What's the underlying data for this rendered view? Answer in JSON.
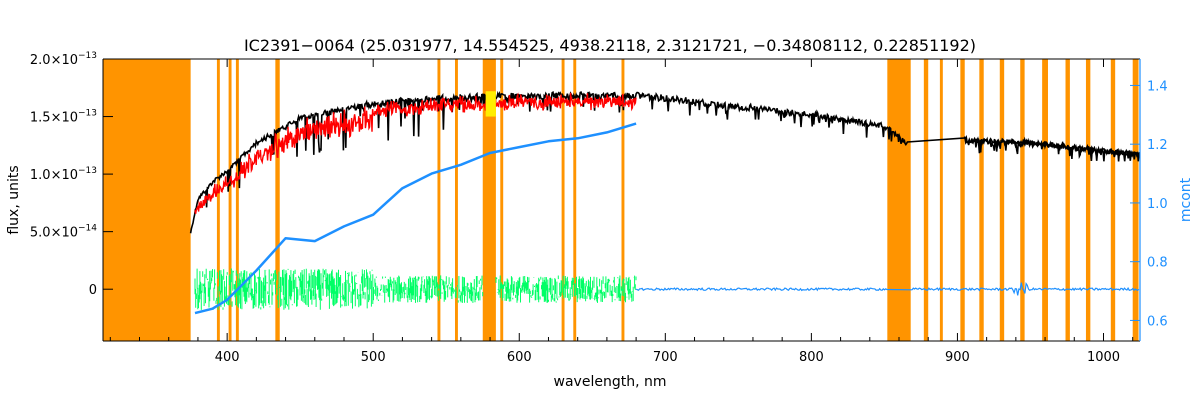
{
  "chart_data": {
    "type": "line",
    "title": "IC2391−0064    (25.031977, 14.554525, 4938.2118, 2.3121721, −0.34808112, 0.22851192)",
    "xlabel": "wavelength, nm",
    "ylabel": "flux, units",
    "ylabel_right": "mcont",
    "xlim": [
      315,
      1025
    ],
    "ylim": [
      -4.5e-14,
      2e-13
    ],
    "ylim_right": [
      0.53,
      1.49
    ],
    "x_ticks": [
      400,
      500,
      600,
      700,
      800,
      900,
      1000
    ],
    "x_tick_labels": [
      "400",
      "500",
      "600",
      "700",
      "800",
      "900",
      "1000"
    ],
    "y_ticks": [
      0,
      5e-14,
      1e-13,
      1.5e-13,
      2e-13
    ],
    "y_tick_labels": [
      {
        "mant": "0",
        "exp": ""
      },
      {
        "mant": "5.0×10",
        "exp": "−14"
      },
      {
        "mant": "1.0×10",
        "exp": "−13"
      },
      {
        "mant": "1.5×10",
        "exp": "−13"
      },
      {
        "mant": "2.0×10",
        "exp": "−13"
      }
    ],
    "y_right_ticks": [
      0.6,
      0.8,
      1.0,
      1.2,
      1.4
    ],
    "y_right_tick_labels": [
      "0.6",
      "0.8",
      "1.0",
      "1.2",
      "1.4"
    ],
    "masked_regions": [
      [
        315,
        375
      ],
      [
        575,
        584
      ],
      [
        852,
        868
      ],
      [
        393,
        395
      ],
      [
        401,
        403
      ],
      [
        406,
        408
      ],
      [
        433,
        436
      ],
      [
        544,
        546
      ],
      [
        556,
        558
      ],
      [
        587,
        589
      ],
      [
        629,
        631
      ],
      [
        637,
        639
      ],
      [
        670,
        672
      ],
      [
        877,
        880
      ],
      [
        888,
        890
      ],
      [
        902,
        905
      ],
      [
        915,
        918
      ],
      [
        929,
        932
      ],
      [
        943,
        946
      ],
      [
        958,
        962
      ],
      [
        974,
        977
      ],
      [
        988,
        991
      ],
      [
        1005,
        1008
      ],
      [
        1020,
        1024
      ]
    ],
    "series": [
      {
        "role": "observed",
        "color": "#000000",
        "x": [
          375,
          380,
          390,
          400,
          420,
          450,
          480,
          500,
          550,
          600,
          650,
          680,
          700,
          750,
          800,
          850,
          865,
          900,
          950,
          1000,
          1025
        ],
        "values": [
          5e-14,
          8e-14,
          9.5e-14,
          1.05e-13,
          1.3e-13,
          1.52e-13,
          1.6e-13,
          1.65e-13,
          1.7e-13,
          1.72e-13,
          1.72e-13,
          1.72e-13,
          1.7e-13,
          1.62e-13,
          1.55e-13,
          1.45e-13,
          1.3e-13,
          1.33e-13,
          1.3e-13,
          1.23e-13,
          1.2e-13
        ]
      },
      {
        "role": "model",
        "color": "#ff0000",
        "x": [
          378,
          390,
          400,
          420,
          450,
          480,
          500,
          550,
          600,
          650,
          680
        ],
        "values": [
          7.5e-14,
          9e-14,
          1e-13,
          1.25e-13,
          1.48e-13,
          1.57e-13,
          1.62e-13,
          1.68e-13,
          1.7e-13,
          1.71e-13,
          1.71e-13
        ]
      },
      {
        "role": "residuals",
        "color": "#00ff66",
        "x": [
          378,
          680
        ],
        "values": [
          0,
          0
        ]
      },
      {
        "role": "residuals-beyond",
        "color": "#1e90ff",
        "x": [
          680,
          1025
        ],
        "values": [
          0,
          0
        ]
      },
      {
        "role": "mcont",
        "color": "#1e90ff",
        "axis": "right",
        "x": [
          378,
          390,
          400,
          420,
          440,
          460,
          480,
          500,
          520,
          540,
          560,
          580,
          600,
          620,
          640,
          660,
          680
        ],
        "values": [
          0.625,
          0.64,
          0.67,
          0.77,
          0.88,
          0.87,
          0.92,
          0.96,
          1.05,
          1.1,
          1.13,
          1.17,
          1.19,
          1.21,
          1.22,
          1.24,
          1.27
        ]
      }
    ],
    "colors": {
      "mask": "#ff9400",
      "mask_yellow": "#ffee00",
      "right_axis": "#1e90ff",
      "axes": "#000000"
    }
  }
}
